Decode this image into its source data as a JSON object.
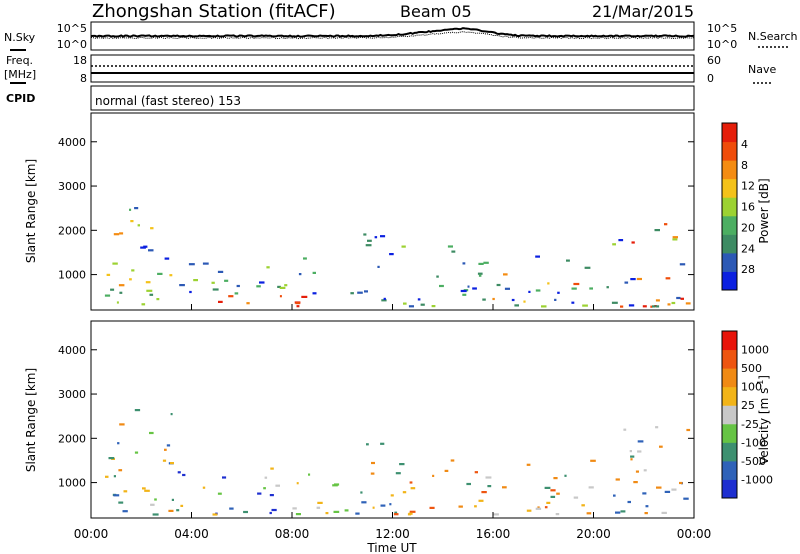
{
  "header": {
    "station": "Zhongshan Station (fitACF)",
    "beam": "Beam 05",
    "date": "21/Mar/2015"
  },
  "top_panel": {
    "left_label": "N.Sky",
    "left_ticks": [
      "10^5",
      "10^0"
    ],
    "right_label": "N.Search",
    "right_ticks": [
      "10^5",
      "10^0"
    ]
  },
  "freq_panel": {
    "left_label_1": "Freq.",
    "left_label_2": "[MHz]",
    "left_ticks": [
      "18",
      "8"
    ],
    "right_label": "Nave",
    "right_ticks": [
      "60",
      "0"
    ]
  },
  "cpid": {
    "label": "CPID",
    "text": "normal (fast stereo) 153"
  },
  "chart_data": [
    {
      "type": "heatmap",
      "name": "power",
      "ylabel": "Slant Range [km]",
      "ylim": [
        200,
        4650
      ],
      "yticks": [
        "1000",
        "2000",
        "3000",
        "4000"
      ],
      "xlim": [
        0,
        24
      ],
      "colorbar_label": "Power [dB]",
      "colorbar_ticks": [
        "4",
        "8",
        "12",
        "16",
        "20",
        "24",
        "28"
      ],
      "colors": [
        "#0b20e0",
        "#2c59b5",
        "#3d8b63",
        "#4cae62",
        "#9cd232",
        "#f4c21a",
        "#f48c12",
        "#ef4c0a",
        "#e51e0a"
      ]
    },
    {
      "type": "heatmap",
      "name": "velocity",
      "ylabel": "Slant Range [km]",
      "ylim": [
        200,
        4650
      ],
      "yticks": [
        "1000",
        "2000",
        "3000",
        "4000"
      ],
      "xlim": [
        0,
        24
      ],
      "xlabel": "Time UT",
      "xticks": [
        "00:00",
        "04:00",
        "08:00",
        "12:00",
        "16:00",
        "20:00",
        "00:00"
      ],
      "colorbar_label": "Velocity [m s",
      "colorbar_label_sup": "-1",
      "colorbar_ticks": [
        "1000",
        "500",
        "100",
        "25",
        "-25",
        "-100",
        "-500",
        "-1000"
      ],
      "colors": [
        "#1e2fd0",
        "#2f62b8",
        "#3d9070",
        "#66c444",
        "#c8c8c8",
        "#f2b418",
        "#f08a14",
        "#ee5510",
        "#e8140a"
      ]
    }
  ]
}
